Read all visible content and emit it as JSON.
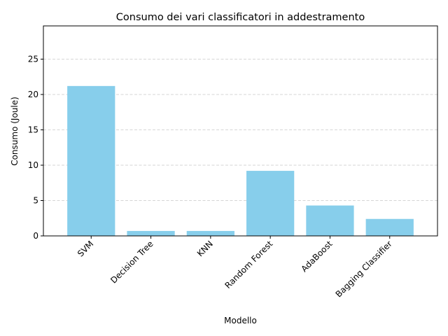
{
  "chart_data": {
    "type": "bar",
    "title": "Consumo dei vari classificatori in addestramento",
    "xlabel": "Modello",
    "ylabel": "Consumo (Joule)",
    "categories": [
      "SVM",
      "Decision Tree",
      "KNN",
      "Random Forest",
      "AdaBoost",
      "Bagging Classifier"
    ],
    "values": [
      21.2,
      0.7,
      0.7,
      9.2,
      4.3,
      2.4
    ],
    "ylim": [
      0,
      29.7
    ],
    "yticks": [
      0,
      5,
      10,
      15,
      20,
      25
    ],
    "grid": "y-dashed",
    "legend": "none",
    "bar_color": "#87ceeb",
    "grid_color": "#c8c8c8"
  }
}
